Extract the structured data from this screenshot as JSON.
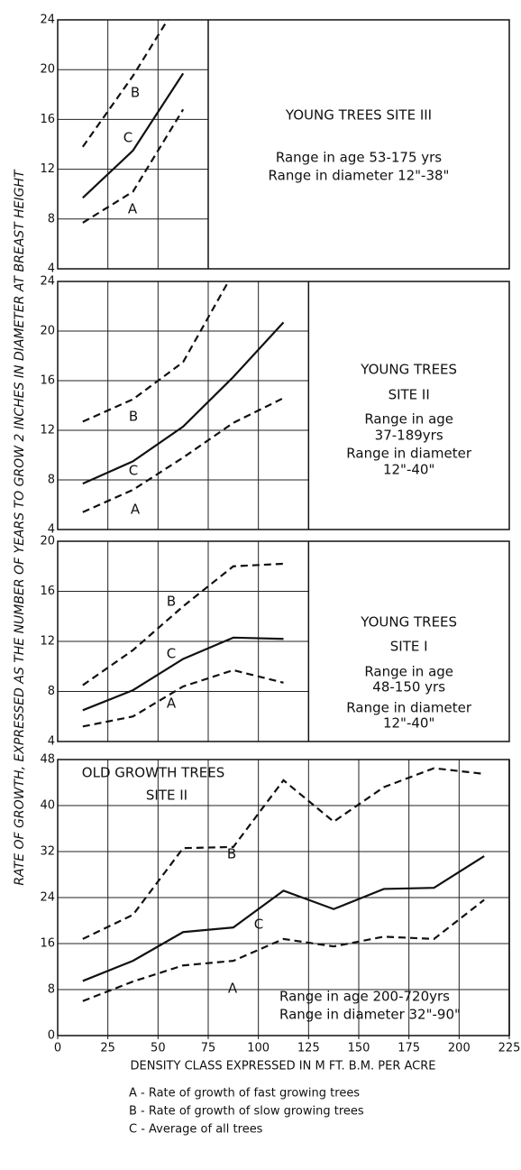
{
  "figure": {
    "ylabel": "RATE OF GROWTH, EXPRESSED AS THE NUMBER OF YEARS TO GROW 2 INCHES IN DIAMETER AT BREAST HEIGHT",
    "legend": [
      "A - Rate of growth of fast growing trees",
      "B - Rate of growth of slow growing trees",
      "C - Average of all trees"
    ]
  },
  "chart_data": [
    {
      "type": "line",
      "title": [
        "YOUNG TREES  SITE III"
      ],
      "notes": [
        "Range in age 53-175 yrs",
        "Range in diameter 12\"-38\""
      ],
      "x": [
        12.5,
        37.5,
        62.5
      ],
      "xlim": [
        0,
        75
      ],
      "ylim": [
        4,
        24
      ],
      "yticks": [
        4,
        8,
        12,
        16,
        20,
        24
      ],
      "grid": true,
      "series": [
        {
          "name": "B",
          "color": "#111",
          "style": "dashed",
          "values": [
            13.8,
            19.5,
            26
          ]
        },
        {
          "name": "C",
          "color": "#111",
          "style": "solid",
          "values": [
            9.7,
            13.5,
            19.7
          ]
        },
        {
          "name": "A",
          "color": "#111",
          "style": "dashed",
          "values": [
            7.7,
            10.2,
            16.8
          ]
        }
      ]
    },
    {
      "type": "line",
      "title": [
        "YOUNG TREES",
        "SITE II"
      ],
      "notes": [
        "Range in age",
        "37-189yrs",
        "Range in diameter",
        "12\"-40\""
      ],
      "x": [
        12.5,
        37.5,
        62.5,
        87.5,
        112.5
      ],
      "xlim": [
        0,
        125
      ],
      "ylim": [
        4,
        24
      ],
      "yticks": [
        4,
        8,
        12,
        16,
        20,
        24
      ],
      "grid": true,
      "series": [
        {
          "name": "B",
          "color": "#111",
          "style": "dashed",
          "values": [
            12.7,
            14.5,
            17.5,
            24.7,
            null
          ]
        },
        {
          "name": "C",
          "color": "#111",
          "style": "solid",
          "values": [
            7.7,
            9.5,
            12.3,
            16.3,
            20.7
          ]
        },
        {
          "name": "A",
          "color": "#111",
          "style": "dashed",
          "values": [
            5.4,
            7.2,
            9.8,
            12.6,
            14.6
          ]
        }
      ]
    },
    {
      "type": "line",
      "title": [
        "YOUNG TREES",
        "SITE I"
      ],
      "notes": [
        "Range in age",
        "48-150 yrs",
        "Range in diameter",
        "12\"-40\""
      ],
      "x": [
        12.5,
        37.5,
        62.5,
        87.5,
        112.5
      ],
      "xlim": [
        0,
        125
      ],
      "ylim": [
        4,
        20
      ],
      "yticks": [
        4,
        8,
        12,
        16,
        20
      ],
      "grid": true,
      "series": [
        {
          "name": "B",
          "color": "#111",
          "style": "dashed",
          "values": [
            8.5,
            11.3,
            14.8,
            18,
            18.2
          ]
        },
        {
          "name": "C",
          "color": "#111",
          "style": "solid",
          "values": [
            6.5,
            8.1,
            10.6,
            12.3,
            12.2
          ]
        },
        {
          "name": "A",
          "color": "#111",
          "style": "dashed",
          "values": [
            5.2,
            6,
            8.4,
            9.7,
            8.7
          ]
        }
      ]
    },
    {
      "type": "line",
      "title": [
        "OLD GROWTH TREES",
        "SITE II"
      ],
      "notes": [
        "Range in age 200-720yrs",
        "Range in diameter 32\"-90\""
      ],
      "x": [
        12.5,
        37.5,
        62.5,
        87.5,
        112.5,
        137.5,
        162.5,
        187.5,
        212.5
      ],
      "xlim": [
        0,
        225
      ],
      "ylim": [
        0,
        48
      ],
      "yticks": [
        0,
        8,
        16,
        24,
        32,
        40,
        48
      ],
      "grid": true,
      "xticks": [
        0,
        25,
        50,
        75,
        100,
        125,
        150,
        175,
        200,
        225
      ],
      "xlabel": "DENSITY CLASS EXPRESSED IN M FT. B.M. PER ACRE",
      "series": [
        {
          "name": "B",
          "color": "#111",
          "style": "dashed",
          "values": [
            16.8,
            21,
            32.6,
            32.8,
            44.4,
            37.2,
            43.2,
            46.5,
            45.5
          ]
        },
        {
          "name": "C",
          "color": "#111",
          "style": "solid",
          "values": [
            9.5,
            13,
            18,
            18.8,
            25.2,
            22,
            25.5,
            25.7,
            31.2
          ]
        },
        {
          "name": "A",
          "color": "#111",
          "style": "dashed",
          "values": [
            6,
            9.4,
            12.2,
            13,
            16.8,
            15.5,
            17.2,
            16.8,
            23.6
          ]
        }
      ]
    }
  ]
}
